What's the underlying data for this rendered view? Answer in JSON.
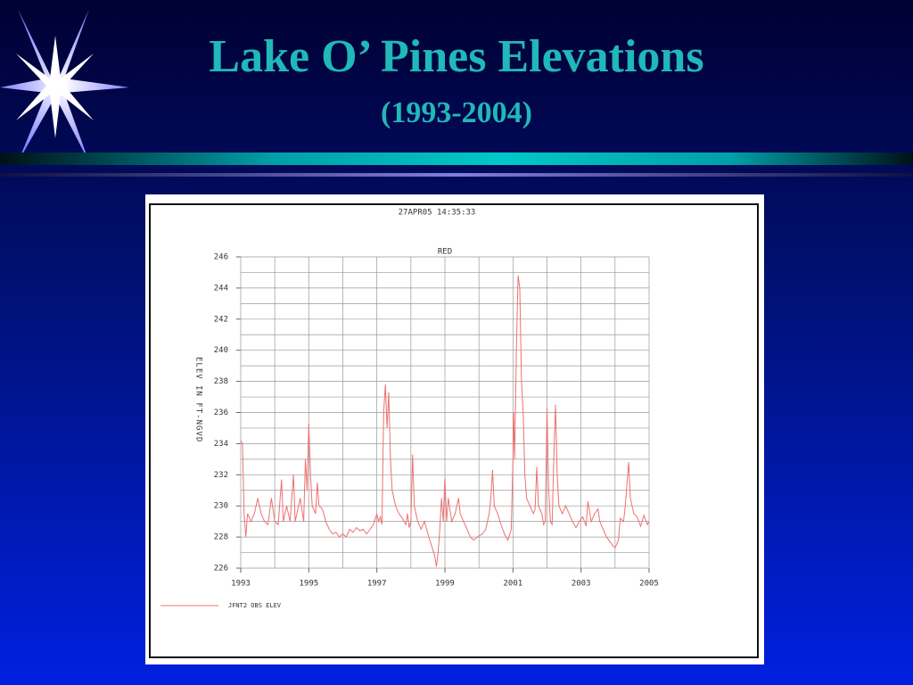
{
  "slide": {
    "title": "Lake O’ Pines Elevations",
    "subtitle": "(1993-2004)"
  },
  "chart_data": {
    "type": "line",
    "timestamp": "27APR05  14:35:33",
    "title": "RED",
    "y_label": "ELEV IN FT-NGVD",
    "xlim": [
      1993,
      2005
    ],
    "xticks": [
      1993,
      1995,
      1997,
      1999,
      2001,
      2003,
      2005
    ],
    "x_minor_ticks": [
      1994,
      1996,
      1998,
      2000,
      2002,
      2004
    ],
    "ylim": [
      226,
      246
    ],
    "yticks": [
      226,
      228,
      230,
      232,
      234,
      236,
      238,
      240,
      242,
      244,
      246
    ],
    "y_minor_ticks": [
      227,
      229,
      231,
      233,
      235,
      237,
      239,
      241,
      243,
      245
    ],
    "grid": true,
    "x": [
      1993.0,
      1993.05,
      1993.1,
      1993.15,
      1993.2,
      1993.3,
      1993.4,
      1993.5,
      1993.6,
      1993.7,
      1993.8,
      1993.9,
      1994.0,
      1994.1,
      1994.2,
      1994.25,
      1994.35,
      1994.45,
      1994.55,
      1994.6,
      1994.75,
      1994.85,
      1994.9,
      1994.95,
      1995.0,
      1995.05,
      1995.1,
      1995.2,
      1995.25,
      1995.3,
      1995.4,
      1995.5,
      1995.6,
      1995.7,
      1995.8,
      1995.9,
      1996.0,
      1996.1,
      1996.2,
      1996.3,
      1996.4,
      1996.5,
      1996.6,
      1996.7,
      1996.8,
      1996.9,
      1997.0,
      1997.05,
      1997.1,
      1997.15,
      1997.2,
      1997.25,
      1997.3,
      1997.35,
      1997.4,
      1997.45,
      1997.55,
      1997.65,
      1997.75,
      1997.85,
      1997.9,
      1997.95,
      1998.0,
      1998.05,
      1998.1,
      1998.2,
      1998.3,
      1998.4,
      1998.5,
      1998.6,
      1998.7,
      1998.75,
      1998.8,
      1998.85,
      1998.9,
      1998.95,
      1999.0,
      1999.05,
      1999.1,
      1999.2,
      1999.3,
      1999.4,
      1999.45,
      1999.55,
      1999.65,
      1999.75,
      1999.85,
      1999.95,
      2000.1,
      2000.2,
      2000.3,
      2000.35,
      2000.4,
      2000.45,
      2000.55,
      2000.65,
      2000.75,
      2000.85,
      2000.95,
      2001.0,
      2001.02,
      2001.05,
      2001.1,
      2001.15,
      2001.2,
      2001.25,
      2001.3,
      2001.35,
      2001.4,
      2001.5,
      2001.6,
      2001.65,
      2001.7,
      2001.75,
      2001.85,
      2001.9,
      2001.95,
      2002.0,
      2002.05,
      2002.1,
      2002.15,
      2002.2,
      2002.25,
      2002.3,
      2002.35,
      2002.45,
      2002.55,
      2002.65,
      2002.75,
      2002.85,
      2002.95,
      2003.05,
      2003.15,
      2003.2,
      2003.3,
      2003.4,
      2003.5,
      2003.55,
      2003.65,
      2003.75,
      2003.85,
      2003.95,
      2004.0,
      2004.1,
      2004.15,
      2004.25,
      2004.3,
      2004.4,
      2004.45,
      2004.55,
      2004.65,
      2004.75,
      2004.85,
      2004.95,
      2005.0
    ],
    "series": [
      {
        "name": "JFNT2 OBS ELEV",
        "color": "#f07070",
        "values": [
          234.2,
          234,
          229.5,
          228,
          229.5,
          229,
          229.5,
          230.5,
          229.5,
          229,
          228.8,
          230.5,
          229,
          228.8,
          231.7,
          229,
          230,
          229,
          232,
          229,
          230.5,
          229,
          233,
          231,
          235.3,
          232,
          230,
          229.5,
          231.5,
          230,
          229.8,
          229,
          228.5,
          228.2,
          228.3,
          228,
          228.2,
          228,
          228.5,
          228.3,
          228.6,
          228.4,
          228.5,
          228.2,
          228.5,
          228.8,
          229.5,
          229,
          229.3,
          228.8,
          236,
          237.8,
          235,
          237.3,
          233,
          231,
          230,
          229.5,
          229.2,
          228.8,
          229.5,
          228.6,
          229,
          233.3,
          230,
          229,
          228.5,
          229,
          228.2,
          227.5,
          226.8,
          226.1,
          227,
          228.5,
          230.5,
          229,
          231.8,
          229,
          230.5,
          229,
          229.5,
          230.5,
          229.5,
          229,
          228.5,
          228,
          227.8,
          228,
          228.2,
          228.5,
          229.5,
          230.5,
          232.3,
          230,
          229.5,
          228.8,
          228.2,
          227.8,
          228.5,
          233,
          236,
          233,
          240,
          244.8,
          244,
          238,
          236,
          232,
          230.5,
          230,
          229.5,
          229.8,
          232.5,
          230,
          229.5,
          228.8,
          229,
          236.3,
          231,
          229,
          228.8,
          233,
          236.5,
          232,
          230,
          229.5,
          230,
          229.5,
          229,
          228.6,
          229,
          229.3,
          228.7,
          230.3,
          229,
          229.5,
          229.8,
          229,
          228.5,
          228,
          227.7,
          227.4,
          227.3,
          227.8,
          229.2,
          229,
          230,
          232.8,
          230.5,
          229.5,
          229.3,
          228.7,
          229.4,
          228.8,
          229
        ]
      }
    ]
  }
}
